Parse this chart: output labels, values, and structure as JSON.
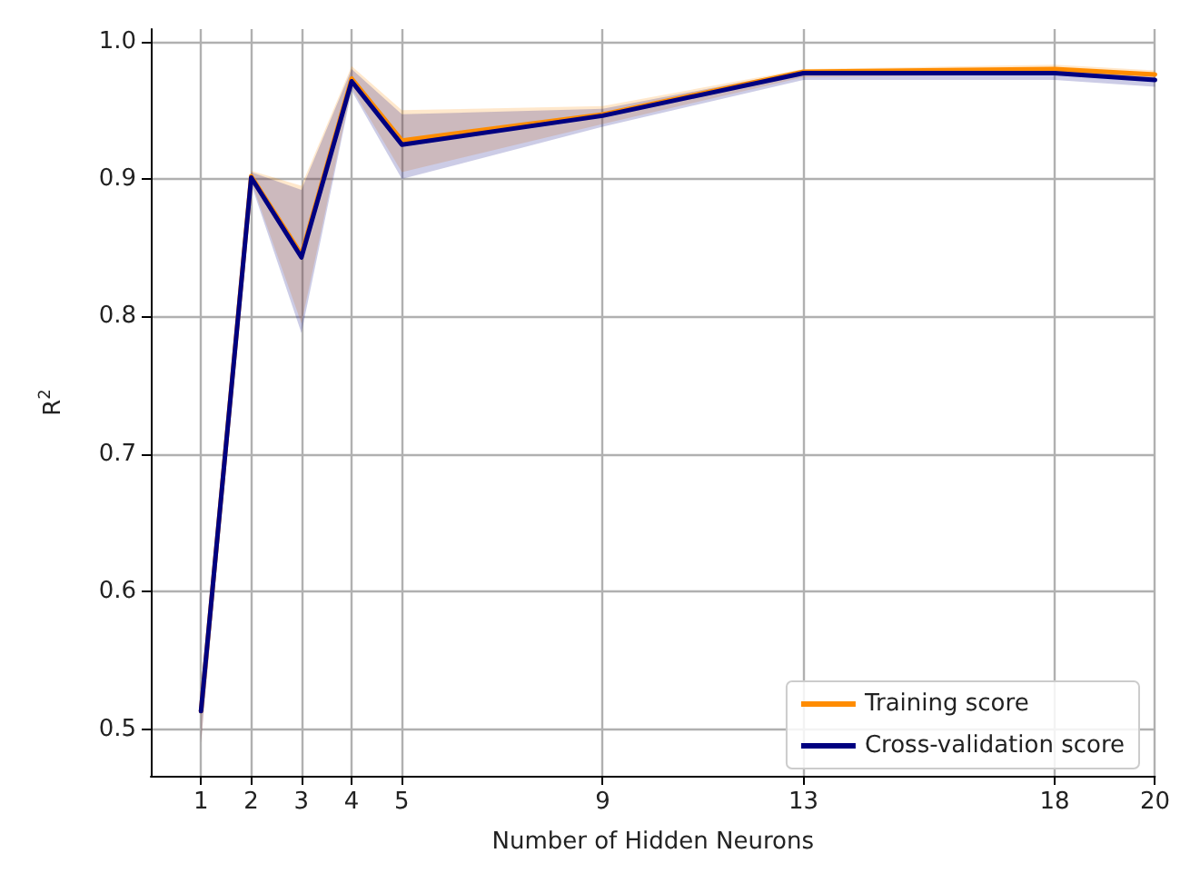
{
  "chart_data": {
    "type": "line",
    "xlabel": "Number of Hidden Neurons",
    "ylabel": "R$^{2}$",
    "x": [
      1,
      2,
      3,
      4,
      5,
      9,
      13,
      18,
      20
    ],
    "series": [
      {
        "name": "Training score",
        "color": "#ff8c00",
        "values": [
          0.513,
          0.902,
          0.845,
          0.973,
          0.928,
          0.947,
          0.978,
          0.98,
          0.976
        ],
        "lower": [
          0.49,
          0.898,
          0.795,
          0.966,
          0.905,
          0.94,
          0.974,
          0.976,
          0.971
        ],
        "upper": [
          0.516,
          0.906,
          0.895,
          0.982,
          0.95,
          0.953,
          0.98,
          0.983,
          0.979
        ]
      },
      {
        "name": "Cross-validation score",
        "color": "#000080",
        "values": [
          0.513,
          0.901,
          0.843,
          0.971,
          0.925,
          0.946,
          0.977,
          0.977,
          0.972
        ],
        "lower": [
          0.49,
          0.896,
          0.788,
          0.964,
          0.9,
          0.938,
          0.972,
          0.972,
          0.967
        ],
        "upper": [
          0.515,
          0.905,
          0.892,
          0.98,
          0.947,
          0.951,
          0.979,
          0.98,
          0.976
        ]
      }
    ],
    "xlim": [
      0,
      20
    ],
    "xticks": [
      1,
      2,
      3,
      4,
      5,
      9,
      13,
      18,
      20
    ],
    "ylim": [
      0.466,
      1.009
    ],
    "yticks": [
      0.5,
      0.6,
      0.7,
      0.8,
      0.9,
      {
        "value": 1,
        "label": "1.0"
      }
    ],
    "grid": true,
    "legend": "bottom right",
    "marker": "none",
    "line_style": "solid"
  }
}
